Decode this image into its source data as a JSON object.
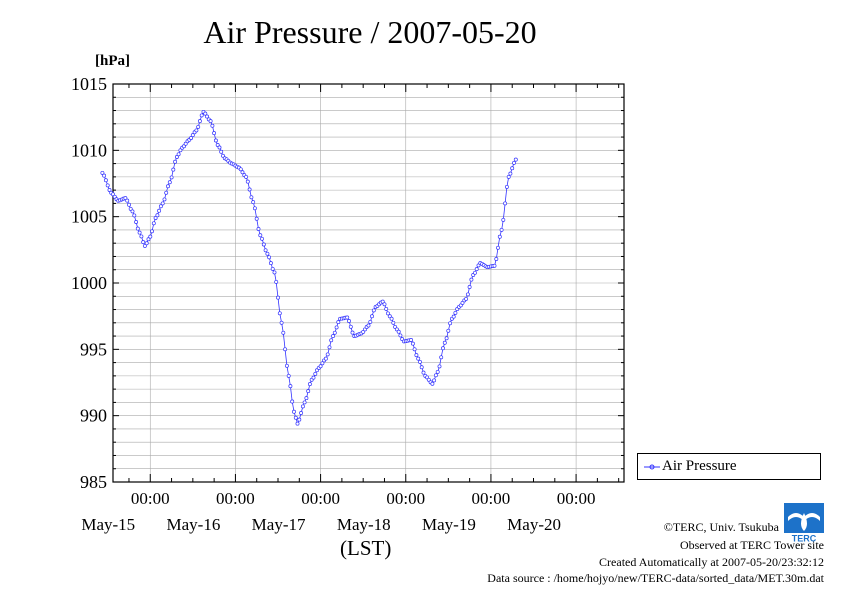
{
  "page": {
    "title": "Air Pressure / 2007-05-20",
    "unit_label": "[hPa]",
    "xlabel": "(LST)",
    "legend_label": "Air Pressure",
    "logo_text": "TERC",
    "credits": [
      "©TERC, Univ. Tsukuba",
      "Observed at TERC Tower site",
      "Created Automatically at 2007-05-20/23:32:12",
      "Data source : /home/hojyo/new/TERC-data/sorted_data/MET.30m.dat"
    ]
  },
  "colors": {
    "series": "#3333ff",
    "grid": "#aaaaaa",
    "logo": "#1d72c9"
  },
  "chart_data": {
    "type": "line",
    "title": "Air Pressure / 2007-05-20",
    "ylabel": "[hPa]",
    "xlabel": "(LST)",
    "ylim": [
      985,
      1015
    ],
    "yticks": [
      985,
      990,
      995,
      1000,
      1005,
      1010,
      1015
    ],
    "y_minor_step": 1,
    "xlim_days": [
      -0.4375,
      5.5625
    ],
    "xticks": [
      {
        "day": 0,
        "time": "00:00",
        "date": "May-15"
      },
      {
        "day": 1,
        "time": "00:00",
        "date": "May-16"
      },
      {
        "day": 2,
        "time": "00:00",
        "date": "May-17"
      },
      {
        "day": 3,
        "time": "00:00",
        "date": "May-18"
      },
      {
        "day": 4,
        "time": "00:00",
        "date": "May-19"
      },
      {
        "day": 5,
        "time": "00:00",
        "date": "May-20"
      }
    ],
    "grid": true,
    "legend_position": "right",
    "series": [
      {
        "name": "Air Pressure",
        "points": [
          [
            "2007-05-14 10:30",
            1008.3
          ],
          [
            "2007-05-14 13:00",
            1006.8
          ],
          [
            "2007-05-14 15:00",
            1006.2
          ],
          [
            "2007-05-14 17:00",
            1006.4
          ],
          [
            "2007-05-14 19:00",
            1005.4
          ],
          [
            "2007-05-14 21:00",
            1003.8
          ],
          [
            "2007-05-14 22:30",
            1002.8
          ],
          [
            "2007-05-15 00:00",
            1003.5
          ],
          [
            "2007-05-15 01:30",
            1004.9
          ],
          [
            "2007-05-15 03:30",
            1006.0
          ],
          [
            "2007-05-15 05:30",
            1007.6
          ],
          [
            "2007-05-15 07:30",
            1009.5
          ],
          [
            "2007-05-15 09:00",
            1010.2
          ],
          [
            "2007-05-15 11:00",
            1010.8
          ],
          [
            "2007-05-15 13:00",
            1011.5
          ],
          [
            "2007-05-15 15:00",
            1012.9
          ],
          [
            "2007-05-15 17:00",
            1012.2
          ],
          [
            "2007-05-15 19:00",
            1010.4
          ],
          [
            "2007-05-15 21:00",
            1009.4
          ],
          [
            "2007-05-15 23:00",
            1009.0
          ],
          [
            "2007-05-16 01:00",
            1008.7
          ],
          [
            "2007-05-16 03:00",
            1008.0
          ],
          [
            "2007-05-16 05:00",
            1006.1
          ],
          [
            "2007-05-16 07:00",
            1003.6
          ],
          [
            "2007-05-16 09:00",
            1002.2
          ],
          [
            "2007-05-16 11:00",
            1000.8
          ],
          [
            "2007-05-16 13:00",
            997.0
          ],
          [
            "2007-05-16 15:00",
            993.0
          ],
          [
            "2007-05-16 16:30",
            990.3
          ],
          [
            "2007-05-16 17:30",
            989.4
          ],
          [
            "2007-05-16 19:30",
            991.0
          ],
          [
            "2007-05-16 21:30",
            992.7
          ],
          [
            "2007-05-16 23:30",
            993.6
          ],
          [
            "2007-05-17 01:30",
            994.3
          ],
          [
            "2007-05-17 03:30",
            996.0
          ],
          [
            "2007-05-17 05:30",
            997.3
          ],
          [
            "2007-05-17 07:30",
            997.4
          ],
          [
            "2007-05-17 09:30",
            996.0
          ],
          [
            "2007-05-17 11:30",
            996.2
          ],
          [
            "2007-05-17 13:30",
            996.8
          ],
          [
            "2007-05-17 15:30",
            998.2
          ],
          [
            "2007-05-17 17:30",
            998.6
          ],
          [
            "2007-05-17 19:30",
            997.5
          ],
          [
            "2007-05-17 21:30",
            996.5
          ],
          [
            "2007-05-17 23:30",
            995.6
          ],
          [
            "2007-05-18 01:30",
            995.7
          ],
          [
            "2007-05-18 03:30",
            994.3
          ],
          [
            "2007-05-18 05:30",
            993.0
          ],
          [
            "2007-05-18 07:30",
            992.4
          ],
          [
            "2007-05-18 09:00",
            993.3
          ],
          [
            "2007-05-18 11:00",
            995.5
          ],
          [
            "2007-05-18 13:00",
            997.3
          ],
          [
            "2007-05-18 15:00",
            998.2
          ],
          [
            "2007-05-18 17:00",
            998.8
          ],
          [
            "2007-05-18 19:00",
            1000.6
          ],
          [
            "2007-05-18 21:00",
            1001.5
          ],
          [
            "2007-05-18 23:00",
            1001.2
          ],
          [
            "2007-05-19 01:00",
            1001.3
          ],
          [
            "2007-05-19 03:00",
            1004.0
          ],
          [
            "2007-05-19 05:00",
            1008.0
          ],
          [
            "2007-05-19 07:00",
            1009.3
          ]
        ]
      }
    ]
  }
}
